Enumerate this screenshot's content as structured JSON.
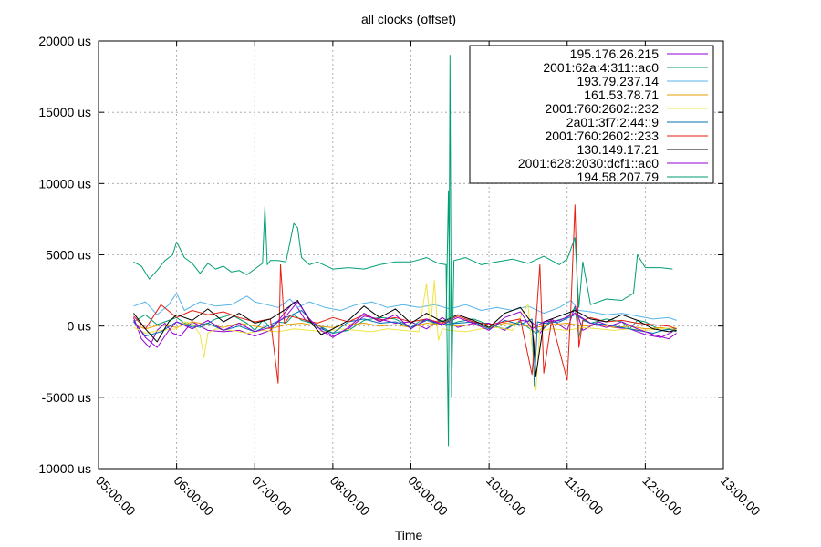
{
  "chart_data": {
    "type": "line",
    "title": "all clocks (offset)",
    "xlabel": "Time",
    "ylabel": "",
    "x_unit": "hours",
    "xlim": [
      5,
      13
    ],
    "ylim": [
      -10000,
      20000
    ],
    "grid": true,
    "legend_position": "top-right",
    "x_ticks": [
      {
        "value": 5,
        "label": "05:00:00"
      },
      {
        "value": 6,
        "label": "06:00:00"
      },
      {
        "value": 7,
        "label": "07:00:00"
      },
      {
        "value": 8,
        "label": "08:00:00"
      },
      {
        "value": 9,
        "label": "09:00:00"
      },
      {
        "value": 10,
        "label": "10:00:00"
      },
      {
        "value": 11,
        "label": "11:00:00"
      },
      {
        "value": 12,
        "label": "12:00:00"
      },
      {
        "value": 13,
        "label": "13:00:00"
      }
    ],
    "y_ticks": [
      {
        "value": -10000,
        "label": "-10000 us"
      },
      {
        "value": -5000,
        "label": "-5000 us"
      },
      {
        "value": 0,
        "label": "0 us"
      },
      {
        "value": 5000,
        "label": "5000 us"
      },
      {
        "value": 10000,
        "label": "10000 us"
      },
      {
        "value": 15000,
        "label": "15000 us"
      },
      {
        "value": 20000,
        "label": "20000 us"
      }
    ],
    "series": [
      {
        "name": "195.176.26.215",
        "color": "#9400d3",
        "x": [
          5.45,
          5.55,
          5.65,
          5.75,
          5.85,
          5.95,
          6.05,
          6.2,
          6.4,
          6.6,
          6.8,
          7.0,
          7.2,
          7.35,
          7.5,
          7.65,
          7.8,
          8.0,
          8.2,
          8.4,
          8.6,
          8.8,
          9.0,
          9.2,
          9.4,
          9.6,
          9.8,
          10.0,
          10.2,
          10.4,
          10.55,
          10.65,
          10.8,
          11.0,
          11.1,
          11.2,
          11.4,
          11.6,
          11.8,
          12.0,
          12.2,
          12.35
        ],
        "y": [
          600,
          -900,
          -1500,
          -300,
          200,
          -500,
          -700,
          300,
          -300,
          -400,
          -300,
          -700,
          -300,
          700,
          1700,
          400,
          100,
          -700,
          -200,
          700,
          500,
          200,
          300,
          -200,
          600,
          -100,
          200,
          200,
          -300,
          400,
          300,
          -500,
          500,
          -300,
          1400,
          -300,
          300,
          -100,
          -200,
          -600,
          -800,
          -400
        ]
      },
      {
        "name": "2001:62a:4:311::ac0",
        "color": "#009e73",
        "x": [
          5.45,
          5.6,
          5.75,
          5.9,
          6.0,
          6.1,
          6.3,
          6.5,
          6.7,
          6.9,
          7.0,
          7.1,
          7.15,
          7.2,
          7.3,
          7.4,
          7.5,
          7.6,
          7.8,
          8.0,
          8.2,
          8.4,
          8.6,
          8.8,
          9.0,
          9.1,
          9.2,
          9.3,
          9.4,
          9.45,
          9.48,
          9.5,
          9.55,
          9.6,
          9.8,
          10.0,
          10.2,
          10.4,
          10.6,
          10.8,
          11.0,
          11.1,
          11.15,
          11.2,
          11.3,
          11.5,
          11.7,
          11.8,
          11.9,
          12.0,
          12.2,
          12.4
        ],
        "y": [
          300,
          800,
          100,
          400,
          600,
          200,
          -100,
          500,
          800,
          200,
          -300,
          400,
          200,
          -200,
          300,
          200,
          800,
          400,
          100,
          -500,
          -300,
          400,
          600,
          500,
          -100,
          300,
          500,
          200,
          400,
          200,
          9500,
          400,
          200,
          300,
          500,
          100,
          -200,
          300,
          -500,
          300,
          600,
          1300,
          -800,
          400,
          200,
          500,
          300,
          -200,
          400,
          300,
          -300,
          -200
        ]
      },
      {
        "name": "193.79.237.14",
        "color": "#56b4e9",
        "x": [
          5.45,
          5.6,
          5.75,
          5.9,
          6.0,
          6.1,
          6.3,
          6.5,
          6.7,
          6.9,
          7.0,
          7.15,
          7.3,
          7.45,
          7.55,
          7.7,
          7.9,
          8.1,
          8.3,
          8.5,
          8.7,
          8.9,
          9.1,
          9.3,
          9.5,
          9.7,
          9.9,
          10.1,
          10.3,
          10.5,
          10.7,
          10.9,
          11.05,
          11.15,
          11.3,
          11.5,
          11.7,
          11.9,
          12.1,
          12.3,
          12.4
        ],
        "y": [
          1400,
          1700,
          800,
          1500,
          2300,
          1100,
          1700,
          1400,
          1500,
          2100,
          1700,
          1500,
          1300,
          1900,
          1300,
          1700,
          1300,
          1100,
          1500,
          1700,
          1300,
          1500,
          1300,
          1500,
          1200,
          1500,
          1100,
          1300,
          1100,
          1400,
          900,
          1300,
          1800,
          1100,
          1000,
          800,
          900,
          700,
          500,
          600,
          400
        ]
      },
      {
        "name": "161.53.78.71",
        "color": "#e69f00",
        "x": [
          5.45,
          5.6,
          5.8,
          6.0,
          6.2,
          6.4,
          6.6,
          6.8,
          7.0,
          7.2,
          7.4,
          7.6,
          7.8,
          8.0,
          8.2,
          8.4,
          8.6,
          8.8,
          9.0,
          9.2,
          9.4,
          9.6,
          9.8,
          10.0,
          10.2,
          10.4,
          10.6,
          10.8,
          11.0,
          11.2,
          11.4,
          11.6,
          11.8,
          12.0,
          12.2,
          12.4
        ],
        "y": [
          100,
          -200,
          100,
          -100,
          300,
          100,
          -100,
          200,
          0,
          -200,
          100,
          200,
          0,
          -100,
          100,
          200,
          0,
          100,
          -100,
          200,
          100,
          0,
          100,
          -100,
          200,
          100,
          -100,
          100,
          200,
          0,
          100,
          -100,
          0,
          -200,
          -100,
          -300
        ]
      },
      {
        "name": "2001:760:2602::232",
        "color": "#f0e442",
        "x": [
          5.45,
          5.6,
          5.8,
          6.0,
          6.1,
          6.2,
          6.3,
          6.35,
          6.4,
          6.5,
          6.7,
          6.9,
          7.1,
          7.3,
          7.5,
          7.7,
          7.9,
          8.1,
          8.3,
          8.5,
          8.7,
          8.9,
          9.1,
          9.2,
          9.25,
          9.3,
          9.35,
          9.4,
          9.5,
          9.7,
          9.9,
          10.1,
          10.3,
          10.5,
          10.6,
          10.65,
          10.7,
          10.8,
          11.0,
          11.2,
          11.4,
          11.6,
          11.8,
          12.0,
          12.2,
          12.4
        ],
        "y": [
          -100,
          -500,
          -300,
          -200,
          300,
          200,
          -600,
          -2200,
          -500,
          -200,
          -300,
          -500,
          -300,
          -400,
          -200,
          -300,
          -400,
          -200,
          -300,
          -400,
          -200,
          -300,
          -400,
          3000,
          -200,
          3200,
          -1000,
          -200,
          -300,
          -400,
          -200,
          -100,
          -300,
          1500,
          -4500,
          -200,
          -300,
          -200,
          -300,
          -100,
          -200,
          -300,
          -200,
          -300,
          -200,
          -100
        ]
      },
      {
        "name": "2a01:3f7:2:44::9",
        "color": "#0072b2",
        "x": [
          5.45,
          5.6,
          5.8,
          6.0,
          6.2,
          6.4,
          6.6,
          6.8,
          7.0,
          7.2,
          7.4,
          7.6,
          7.8,
          8.0,
          8.2,
          8.4,
          8.6,
          8.8,
          9.0,
          9.2,
          9.4,
          9.6,
          9.8,
          10.0,
          10.2,
          10.4,
          10.55,
          10.58,
          10.62,
          10.7,
          10.9,
          11.1,
          11.3,
          11.5,
          11.7,
          11.9,
          12.1,
          12.3,
          12.4
        ],
        "y": [
          300,
          -700,
          -400,
          300,
          -100,
          200,
          -300,
          0,
          -400,
          100,
          600,
          1100,
          -100,
          -500,
          300,
          500,
          200,
          300,
          -100,
          400,
          100,
          200,
          300,
          -200,
          400,
          100,
          500,
          -4200,
          300,
          200,
          300,
          800,
          200,
          100,
          -100,
          -300,
          -500,
          -200,
          -400
        ]
      },
      {
        "name": "2001:760:2602::233",
        "color": "#e51e10",
        "x": [
          5.45,
          5.6,
          5.8,
          6.0,
          6.2,
          6.4,
          6.6,
          6.8,
          7.0,
          7.2,
          7.3,
          7.33,
          7.38,
          7.45,
          7.6,
          7.8,
          8.0,
          8.2,
          8.4,
          8.6,
          8.8,
          9.0,
          9.2,
          9.4,
          9.6,
          9.8,
          10.0,
          10.2,
          10.4,
          10.55,
          10.6,
          10.65,
          10.7,
          10.8,
          11.0,
          11.05,
          11.1,
          11.15,
          11.2,
          11.3,
          11.5,
          11.7,
          11.9,
          12.1,
          12.3,
          12.4
        ],
        "y": [
          700,
          -200,
          1500,
          600,
          1100,
          800,
          1000,
          600,
          300,
          500,
          -4000,
          4300,
          200,
          700,
          500,
          200,
          600,
          300,
          800,
          400,
          600,
          300,
          500,
          200,
          700,
          300,
          100,
          300,
          500,
          -3400,
          200,
          4300,
          -3300,
          400,
          -3800,
          1500,
          8500,
          -1500,
          400,
          600,
          300,
          400,
          200,
          100,
          0,
          -200
        ]
      },
      {
        "name": "130.149.17.21",
        "color": "#000000",
        "x": [
          5.45,
          5.6,
          5.75,
          5.9,
          6.0,
          6.2,
          6.4,
          6.6,
          6.8,
          7.0,
          7.2,
          7.4,
          7.55,
          7.7,
          7.85,
          8.0,
          8.2,
          8.4,
          8.6,
          8.8,
          9.0,
          9.2,
          9.4,
          9.6,
          9.8,
          10.0,
          10.2,
          10.4,
          10.55,
          10.6,
          10.7,
          10.9,
          11.1,
          11.3,
          11.5,
          11.7,
          11.9,
          12.1,
          12.3,
          12.4
        ],
        "y": [
          900,
          -200,
          -1100,
          300,
          800,
          400,
          1200,
          300,
          900,
          200,
          500,
          1200,
          1800,
          400,
          -600,
          -200,
          400,
          1400,
          600,
          1200,
          200,
          900,
          300,
          800,
          400,
          -100,
          900,
          1300,
          200,
          -3500,
          300,
          700,
          1100,
          500,
          300,
          800,
          400,
          -200,
          -400,
          -300
        ]
      },
      {
        "name": "2001:628:2030:dcf1::ac0",
        "color": "#9400d3",
        "x": [
          5.45,
          5.6,
          5.75,
          5.9,
          6.0,
          6.2,
          6.4,
          6.6,
          6.8,
          7.0,
          7.2,
          7.4,
          7.55,
          7.7,
          7.85,
          8.0,
          8.2,
          8.4,
          8.6,
          8.8,
          9.0,
          9.2,
          9.4,
          9.6,
          9.8,
          10.0,
          10.2,
          10.4,
          10.55,
          10.7,
          10.9,
          11.1,
          11.3,
          11.5,
          11.7,
          11.9,
          12.1,
          12.3,
          12.4
        ],
        "y": [
          400,
          -800,
          -1500,
          -300,
          300,
          -200,
          400,
          -300,
          200,
          -400,
          -100,
          700,
          1700,
          500,
          -300,
          -800,
          -100,
          900,
          300,
          800,
          -200,
          500,
          100,
          600,
          200,
          -300,
          600,
          1000,
          -200,
          300,
          400,
          900,
          200,
          -100,
          300,
          -200,
          -600,
          -900,
          -500
        ]
      },
      {
        "name": "194.58.207.79",
        "color": "#009e73",
        "x": [
          5.45,
          5.55,
          5.65,
          5.75,
          5.85,
          5.95,
          6.0,
          6.1,
          6.2,
          6.3,
          6.4,
          6.5,
          6.6,
          6.7,
          6.8,
          6.9,
          7.0,
          7.05,
          7.1,
          7.13,
          7.16,
          7.2,
          7.3,
          7.4,
          7.5,
          7.55,
          7.6,
          7.7,
          7.8,
          8.0,
          8.2,
          8.4,
          8.6,
          8.8,
          9.0,
          9.2,
          9.35,
          9.45,
          9.48,
          9.5,
          9.52,
          9.55,
          9.7,
          9.9,
          10.1,
          10.3,
          10.5,
          10.7,
          10.9,
          11.0,
          11.1,
          11.15,
          11.2,
          11.3,
          11.5,
          11.7,
          11.85,
          11.9,
          12.0,
          12.2,
          12.35
        ],
        "y": [
          4500,
          4200,
          3300,
          3900,
          4600,
          5000,
          5900,
          4800,
          4400,
          3700,
          4400,
          4000,
          4200,
          3800,
          3900,
          3600,
          4000,
          4200,
          4400,
          8400,
          4300,
          4600,
          4600,
          4500,
          7200,
          6900,
          4800,
          4300,
          4500,
          4000,
          4100,
          4000,
          4300,
          4500,
          4500,
          4800,
          4400,
          4300,
          -8400,
          19000,
          -5000,
          4600,
          4800,
          4300,
          4500,
          4700,
          4400,
          4900,
          4300,
          4700,
          6200,
          1300,
          4500,
          1500,
          1900,
          1800,
          2300,
          5000,
          4100,
          4100,
          4000
        ]
      }
    ]
  }
}
